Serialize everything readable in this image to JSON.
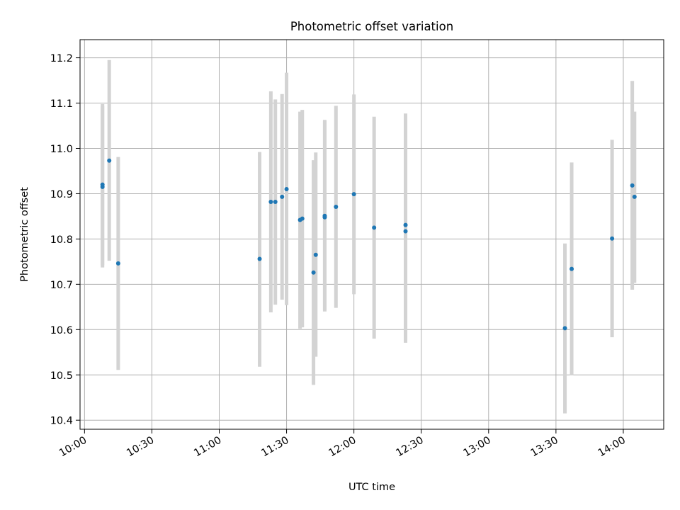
{
  "chart_data": {
    "type": "scatter",
    "title": "Photometric offset variation",
    "xlabel": "UTC time",
    "ylabel": "Photometric offset",
    "x_ticks": [
      "10:00",
      "10:30",
      "11:00",
      "11:30",
      "12:00",
      "12:30",
      "13:00",
      "13:30",
      "14:00"
    ],
    "y_ticks": [
      "10.4",
      "10.5",
      "10.6",
      "10.7",
      "10.8",
      "10.9",
      "11.0",
      "11.1",
      "11.2"
    ],
    "xlim": [
      "09:58",
      "14:18"
    ],
    "ylim": [
      10.38,
      11.24
    ],
    "grid": true,
    "marker_color": "#1f77b4",
    "errorbar_color": "#d3d3d3",
    "points": [
      {
        "x": "10:08",
        "y": 10.915,
        "ylow": 10.737,
        "yhigh": 11.093
      },
      {
        "x": "10:08",
        "y": 10.92,
        "ylow": 10.742,
        "yhigh": 11.098
      },
      {
        "x": "10:11",
        "y": 10.973,
        "ylow": 10.752,
        "yhigh": 11.195
      },
      {
        "x": "10:15",
        "y": 10.746,
        "ylow": 10.511,
        "yhigh": 10.981
      },
      {
        "x": "11:18",
        "y": 10.756,
        "ylow": 10.518,
        "yhigh": 10.992
      },
      {
        "x": "11:23",
        "y": 10.882,
        "ylow": 10.638,
        "yhigh": 11.126
      },
      {
        "x": "11:25",
        "y": 10.882,
        "ylow": 10.655,
        "yhigh": 11.108
      },
      {
        "x": "11:28",
        "y": 10.893,
        "ylow": 10.666,
        "yhigh": 11.12
      },
      {
        "x": "11:30",
        "y": 10.91,
        "ylow": 10.654,
        "yhigh": 11.167
      },
      {
        "x": "11:36",
        "y": 10.842,
        "ylow": 10.602,
        "yhigh": 11.081
      },
      {
        "x": "11:37",
        "y": 10.845,
        "ylow": 10.605,
        "yhigh": 11.085
      },
      {
        "x": "11:42",
        "y": 10.726,
        "ylow": 10.478,
        "yhigh": 10.974
      },
      {
        "x": "11:43",
        "y": 10.765,
        "ylow": 10.54,
        "yhigh": 10.991
      },
      {
        "x": "11:47",
        "y": 10.848,
        "ylow": 10.64,
        "yhigh": 11.063
      },
      {
        "x": "11:47",
        "y": 10.851,
        "ylow": 10.643,
        "yhigh": 11.06
      },
      {
        "x": "11:52",
        "y": 10.871,
        "ylow": 10.648,
        "yhigh": 11.094
      },
      {
        "x": "12:00",
        "y": 10.899,
        "ylow": 10.678,
        "yhigh": 11.119
      },
      {
        "x": "12:09",
        "y": 10.825,
        "ylow": 10.58,
        "yhigh": 11.07
      },
      {
        "x": "12:23",
        "y": 10.831,
        "ylow": 10.578,
        "yhigh": 11.077
      },
      {
        "x": "12:23",
        "y": 10.817,
        "ylow": 10.571,
        "yhigh": 11.063
      },
      {
        "x": "13:34",
        "y": 10.603,
        "ylow": 10.415,
        "yhigh": 10.79
      },
      {
        "x": "13:37",
        "y": 10.734,
        "ylow": 10.499,
        "yhigh": 10.969
      },
      {
        "x": "13:55",
        "y": 10.801,
        "ylow": 10.583,
        "yhigh": 11.019
      },
      {
        "x": "14:04",
        "y": 10.918,
        "ylow": 10.688,
        "yhigh": 11.149
      },
      {
        "x": "14:05",
        "y": 10.893,
        "ylow": 10.703,
        "yhigh": 11.081
      }
    ]
  }
}
